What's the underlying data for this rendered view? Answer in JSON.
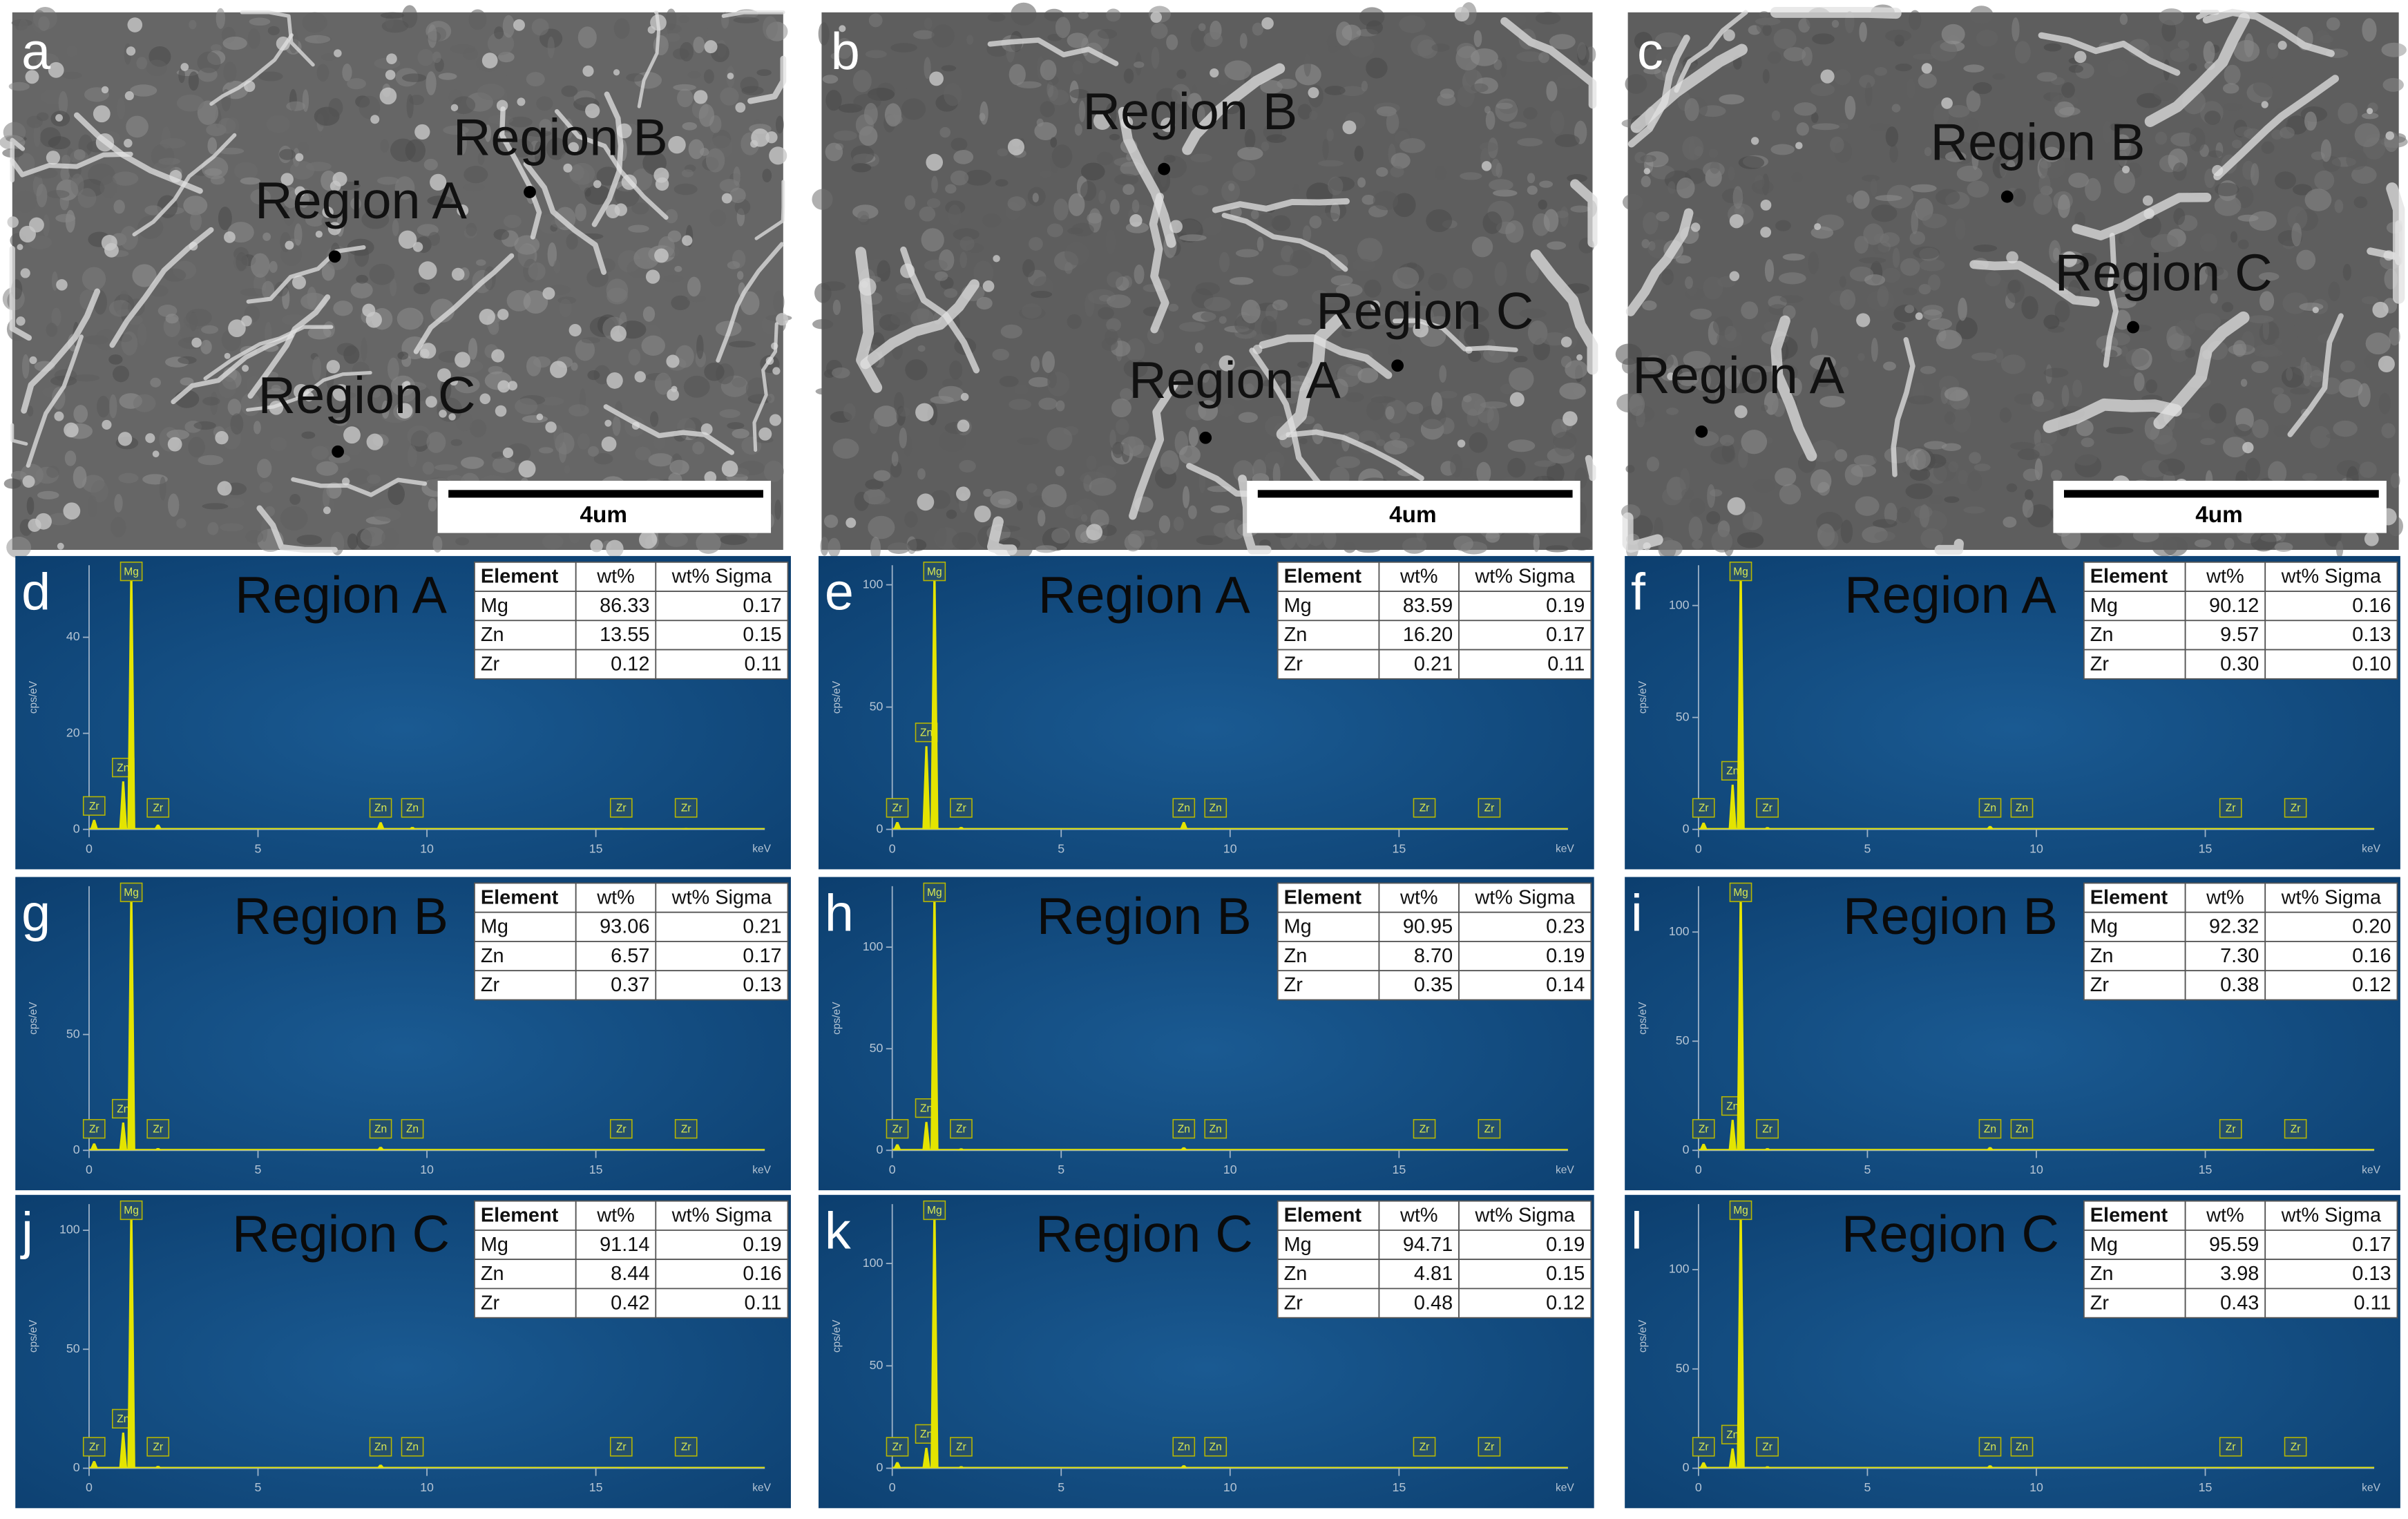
{
  "spectrum_color": "#e4e400",
  "sem_panels": [
    {
      "label": "a",
      "scale_bar": "4um",
      "regions": [
        "Region A",
        "Region B",
        "Region C"
      ]
    },
    {
      "label": "b",
      "scale_bar": "4um",
      "regions": [
        "Region A",
        "Region B",
        "Region C"
      ]
    },
    {
      "label": "c",
      "scale_bar": "4um",
      "regions": [
        "Region A",
        "Region B",
        "Region C"
      ]
    }
  ],
  "eds_panels": [
    {
      "label": "d",
      "region": "Region A",
      "y_label": "cps/eV",
      "x_unit": "keV",
      "xlim": [
        0,
        20
      ],
      "xticks": [
        0,
        5,
        10,
        15
      ],
      "ylim": [
        0,
        55
      ],
      "yticks": [
        0,
        20,
        40
      ],
      "peaks": [
        {
          "label": "Zr",
          "kev": 0.15,
          "cps": 2
        },
        {
          "label": "Zn",
          "kev": 1.01,
          "cps": 10
        },
        {
          "label": "Mg",
          "kev": 1.25,
          "cps": 54
        },
        {
          "label": "Zr",
          "kev": 2.04,
          "cps": 1
        },
        {
          "label": "Zn",
          "kev": 8.63,
          "cps": 1.5
        },
        {
          "label": "Zn",
          "kev": 9.57,
          "cps": 0.5
        },
        {
          "label": "Zr",
          "kev": 15.75,
          "cps": 0.3
        },
        {
          "label": "Zr",
          "kev": 17.67,
          "cps": 0.3
        }
      ],
      "table": {
        "header": [
          "Element",
          "wt%",
          "wt% Sigma"
        ],
        "rows": [
          [
            "Mg",
            "86.33",
            "0.17"
          ],
          [
            "Zn",
            "13.55",
            "0.15"
          ],
          [
            "Zr",
            "0.12",
            "0.11"
          ]
        ]
      }
    },
    {
      "label": "e",
      "region": "Region A",
      "y_label": "cps/eV",
      "x_unit": "keV",
      "xlim": [
        0,
        20
      ],
      "xticks": [
        0,
        5,
        10,
        15
      ],
      "ylim": [
        0,
        108
      ],
      "yticks": [
        0,
        50,
        100
      ],
      "peaks": [
        {
          "label": "Zr",
          "kev": 0.15,
          "cps": 3
        },
        {
          "label": "Zn",
          "kev": 1.01,
          "cps": 34
        },
        {
          "label": "Mg",
          "kev": 1.25,
          "cps": 106
        },
        {
          "label": "Zr",
          "kev": 2.04,
          "cps": 1
        },
        {
          "label": "Zn",
          "kev": 8.63,
          "cps": 3
        },
        {
          "label": "Zn",
          "kev": 9.57,
          "cps": 0.5
        },
        {
          "label": "Zr",
          "kev": 15.75,
          "cps": 0.3
        },
        {
          "label": "Zr",
          "kev": 17.67,
          "cps": 0.3
        }
      ],
      "table": {
        "header": [
          "Element",
          "wt%",
          "wt% Sigma"
        ],
        "rows": [
          [
            "Mg",
            "83.59",
            "0.19"
          ],
          [
            "Zn",
            "16.20",
            "0.17"
          ],
          [
            "Zr",
            "0.21",
            "0.11"
          ]
        ]
      }
    },
    {
      "label": "f",
      "region": "Region A",
      "y_label": "cps/eV",
      "x_unit": "keV",
      "xlim": [
        0,
        20
      ],
      "xticks": [
        0,
        5,
        10,
        15
      ],
      "ylim": [
        0,
        118
      ],
      "yticks": [
        0,
        50,
        100
      ],
      "peaks": [
        {
          "label": "Zr",
          "kev": 0.15,
          "cps": 3
        },
        {
          "label": "Zn",
          "kev": 1.01,
          "cps": 20
        },
        {
          "label": "Mg",
          "kev": 1.25,
          "cps": 116
        },
        {
          "label": "Zr",
          "kev": 2.04,
          "cps": 1
        },
        {
          "label": "Zn",
          "kev": 8.63,
          "cps": 1.5
        },
        {
          "label": "Zn",
          "kev": 9.57,
          "cps": 0.5
        },
        {
          "label": "Zr",
          "kev": 15.75,
          "cps": 0.3
        },
        {
          "label": "Zr",
          "kev": 17.67,
          "cps": 0.3
        }
      ],
      "table": {
        "header": [
          "Element",
          "wt%",
          "wt% Sigma"
        ],
        "rows": [
          [
            "Mg",
            "90.12",
            "0.16"
          ],
          [
            "Zn",
            "9.57",
            "0.13"
          ],
          [
            "Zr",
            "0.30",
            "0.10"
          ]
        ]
      }
    },
    {
      "label": "g",
      "region": "Region B",
      "y_label": "cps/eV",
      "x_unit": "keV",
      "xlim": [
        0,
        20
      ],
      "xticks": [
        0,
        5,
        10,
        15
      ],
      "ylim": [
        0,
        114
      ],
      "yticks": [
        0,
        50
      ],
      "peaks": [
        {
          "label": "Zr",
          "kev": 0.15,
          "cps": 3
        },
        {
          "label": "Zn",
          "kev": 1.01,
          "cps": 12
        },
        {
          "label": "Mg",
          "kev": 1.25,
          "cps": 112
        },
        {
          "label": "Zr",
          "kev": 2.04,
          "cps": 1
        },
        {
          "label": "Zn",
          "kev": 8.63,
          "cps": 1.5
        },
        {
          "label": "Zn",
          "kev": 9.57,
          "cps": 0.5
        },
        {
          "label": "Zr",
          "kev": 15.75,
          "cps": 0.3
        },
        {
          "label": "Zr",
          "kev": 17.67,
          "cps": 0.3
        }
      ],
      "table": {
        "header": [
          "Element",
          "wt%",
          "wt% Sigma"
        ],
        "rows": [
          [
            "Mg",
            "93.06",
            "0.21"
          ],
          [
            "Zn",
            "6.57",
            "0.17"
          ],
          [
            "Zr",
            "0.37",
            "0.13"
          ]
        ]
      }
    },
    {
      "label": "h",
      "region": "Region B",
      "y_label": "cps/eV",
      "x_unit": "keV",
      "xlim": [
        0,
        20
      ],
      "xticks": [
        0,
        5,
        10,
        15
      ],
      "ylim": [
        0,
        130
      ],
      "yticks": [
        0,
        50,
        100
      ],
      "peaks": [
        {
          "label": "Zr",
          "kev": 0.15,
          "cps": 3
        },
        {
          "label": "Zn",
          "kev": 1.01,
          "cps": 14
        },
        {
          "label": "Mg",
          "kev": 1.25,
          "cps": 128
        },
        {
          "label": "Zr",
          "kev": 2.04,
          "cps": 1
        },
        {
          "label": "Zn",
          "kev": 8.63,
          "cps": 1.5
        },
        {
          "label": "Zn",
          "kev": 9.57,
          "cps": 0.5
        },
        {
          "label": "Zr",
          "kev": 15.75,
          "cps": 0.3
        },
        {
          "label": "Zr",
          "kev": 17.67,
          "cps": 0.3
        }
      ],
      "table": {
        "header": [
          "Element",
          "wt%",
          "wt% Sigma"
        ],
        "rows": [
          [
            "Mg",
            "90.95",
            "0.23"
          ],
          [
            "Zn",
            "8.70",
            "0.19"
          ],
          [
            "Zr",
            "0.35",
            "0.14"
          ]
        ]
      }
    },
    {
      "label": "i",
      "region": "Region B",
      "y_label": "cps/eV",
      "x_unit": "keV",
      "xlim": [
        0,
        20
      ],
      "xticks": [
        0,
        5,
        10,
        15
      ],
      "ylim": [
        0,
        121
      ],
      "yticks": [
        0,
        50,
        100
      ],
      "peaks": [
        {
          "label": "Zr",
          "kev": 0.15,
          "cps": 3
        },
        {
          "label": "Zn",
          "kev": 1.01,
          "cps": 14
        },
        {
          "label": "Mg",
          "kev": 1.25,
          "cps": 119
        },
        {
          "label": "Zr",
          "kev": 2.04,
          "cps": 1
        },
        {
          "label": "Zn",
          "kev": 8.63,
          "cps": 1.5
        },
        {
          "label": "Zn",
          "kev": 9.57,
          "cps": 0.5
        },
        {
          "label": "Zr",
          "kev": 15.75,
          "cps": 0.3
        },
        {
          "label": "Zr",
          "kev": 17.67,
          "cps": 0.3
        }
      ],
      "table": {
        "header": [
          "Element",
          "wt%",
          "wt% Sigma"
        ],
        "rows": [
          [
            "Mg",
            "92.32",
            "0.20"
          ],
          [
            "Zn",
            "7.30",
            "0.16"
          ],
          [
            "Zr",
            "0.38",
            "0.12"
          ]
        ]
      }
    },
    {
      "label": "j",
      "region": "Region C",
      "y_label": "cps/eV",
      "x_unit": "keV",
      "xlim": [
        0,
        20
      ],
      "xticks": [
        0,
        5,
        10,
        15
      ],
      "ylim": [
        0,
        111
      ],
      "yticks": [
        0,
        50,
        100
      ],
      "peaks": [
        {
          "label": "Zr",
          "kev": 0.15,
          "cps": 3
        },
        {
          "label": "Zn",
          "kev": 1.01,
          "cps": 15
        },
        {
          "label": "Mg",
          "kev": 1.25,
          "cps": 109
        },
        {
          "label": "Zr",
          "kev": 2.04,
          "cps": 1
        },
        {
          "label": "Zn",
          "kev": 8.63,
          "cps": 1.5
        },
        {
          "label": "Zn",
          "kev": 9.57,
          "cps": 0.5
        },
        {
          "label": "Zr",
          "kev": 15.75,
          "cps": 0.3
        },
        {
          "label": "Zr",
          "kev": 17.67,
          "cps": 0.3
        }
      ],
      "table": {
        "header": [
          "Element",
          "wt%",
          "wt% Sigma"
        ],
        "rows": [
          [
            "Mg",
            "91.14",
            "0.19"
          ],
          [
            "Zn",
            "8.44",
            "0.16"
          ],
          [
            "Zr",
            "0.42",
            "0.11"
          ]
        ]
      }
    },
    {
      "label": "k",
      "region": "Region C",
      "y_label": "cps/eV",
      "x_unit": "keV",
      "xlim": [
        0,
        20
      ],
      "xticks": [
        0,
        5,
        10,
        15
      ],
      "ylim": [
        0,
        129
      ],
      "yticks": [
        0,
        50,
        100
      ],
      "peaks": [
        {
          "label": "Zr",
          "kev": 0.15,
          "cps": 3
        },
        {
          "label": "Zn",
          "kev": 1.01,
          "cps": 10
        },
        {
          "label": "Mg",
          "kev": 1.25,
          "cps": 127
        },
        {
          "label": "Zr",
          "kev": 2.04,
          "cps": 1
        },
        {
          "label": "Zn",
          "kev": 8.63,
          "cps": 1.5
        },
        {
          "label": "Zn",
          "kev": 9.57,
          "cps": 0.5
        },
        {
          "label": "Zr",
          "kev": 15.75,
          "cps": 0.3
        },
        {
          "label": "Zr",
          "kev": 17.67,
          "cps": 0.3
        }
      ],
      "table": {
        "header": [
          "Element",
          "wt%",
          "wt% Sigma"
        ],
        "rows": [
          [
            "Mg",
            "94.71",
            "0.19"
          ],
          [
            "Zn",
            "4.81",
            "0.15"
          ],
          [
            "Zr",
            "0.48",
            "0.12"
          ]
        ]
      }
    },
    {
      "label": "l",
      "region": "Region C",
      "y_label": "cps/eV",
      "x_unit": "keV",
      "xlim": [
        0,
        20
      ],
      "xticks": [
        0,
        5,
        10,
        15
      ],
      "ylim": [
        0,
        133
      ],
      "yticks": [
        0,
        50,
        100
      ],
      "peaks": [
        {
          "label": "Zr",
          "kev": 0.15,
          "cps": 3
        },
        {
          "label": "Zn",
          "kev": 1.01,
          "cps": 10
        },
        {
          "label": "Mg",
          "kev": 1.25,
          "cps": 131
        },
        {
          "label": "Zr",
          "kev": 2.04,
          "cps": 1
        },
        {
          "label": "Zn",
          "kev": 8.63,
          "cps": 1.5
        },
        {
          "label": "Zn",
          "kev": 9.57,
          "cps": 0.5
        },
        {
          "label": "Zr",
          "kev": 15.75,
          "cps": 0.3
        },
        {
          "label": "Zr",
          "kev": 17.67,
          "cps": 0.3
        }
      ],
      "table": {
        "header": [
          "Element",
          "wt%",
          "wt% Sigma"
        ],
        "rows": [
          [
            "Mg",
            "95.59",
            "0.17"
          ],
          [
            "Zn",
            "3.98",
            "0.13"
          ],
          [
            "Zr",
            "0.43",
            "0.11"
          ]
        ]
      }
    }
  ]
}
